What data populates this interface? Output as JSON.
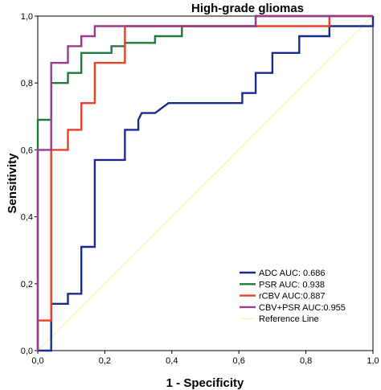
{
  "chart_data": {
    "type": "line",
    "title": "High-grade gliomas",
    "xlabel": "1 - Specificity",
    "ylabel": "Sensitivity",
    "xlim": [
      0,
      1
    ],
    "ylim": [
      0,
      1
    ],
    "x_tick_labels": [
      "0,0",
      "0,2",
      "0,4",
      "0,6",
      "0,8",
      "1,0"
    ],
    "y_tick_labels": [
      "0,0",
      "0,2",
      "0,4",
      "0,6",
      "0,8",
      "1,0"
    ],
    "x_ticks": [
      0,
      0.2,
      0.4,
      0.6,
      0.8,
      1.0
    ],
    "y_ticks": [
      0,
      0.2,
      0.4,
      0.6,
      0.8,
      1.0
    ],
    "legend_placement": "bottom-right",
    "series": [
      {
        "name": "ADC AUC: 0.686",
        "color": "#1a2b8f",
        "points": [
          [
            0,
            0
          ],
          [
            0.04,
            0
          ],
          [
            0.04,
            0.14
          ],
          [
            0.09,
            0.14
          ],
          [
            0.09,
            0.17
          ],
          [
            0.13,
            0.17
          ],
          [
            0.13,
            0.31
          ],
          [
            0.17,
            0.31
          ],
          [
            0.17,
            0.34
          ],
          [
            0.17,
            0.57
          ],
          [
            0.26,
            0.57
          ],
          [
            0.26,
            0.66
          ],
          [
            0.3,
            0.66
          ],
          [
            0.3,
            0.69
          ],
          [
            0.31,
            0.71
          ],
          [
            0.35,
            0.71
          ],
          [
            0.39,
            0.74
          ],
          [
            0.61,
            0.74
          ],
          [
            0.61,
            0.77
          ],
          [
            0.65,
            0.77
          ],
          [
            0.65,
            0.83
          ],
          [
            0.7,
            0.83
          ],
          [
            0.7,
            0.89
          ],
          [
            0.78,
            0.89
          ],
          [
            0.78,
            0.94
          ],
          [
            0.87,
            0.94
          ],
          [
            0.87,
            0.97
          ],
          [
            1.0,
            0.97
          ],
          [
            1.0,
            1.0
          ]
        ]
      },
      {
        "name": "PSR  AUC: 0.938",
        "color": "#1f7a3c",
        "points": [
          [
            0,
            0
          ],
          [
            0,
            0.69
          ],
          [
            0.04,
            0.69
          ],
          [
            0.04,
            0.8
          ],
          [
            0.09,
            0.8
          ],
          [
            0.09,
            0.83
          ],
          [
            0.13,
            0.83
          ],
          [
            0.13,
            0.89
          ],
          [
            0.22,
            0.89
          ],
          [
            0.22,
            0.91
          ],
          [
            0.26,
            0.91
          ],
          [
            0.26,
            0.92
          ],
          [
            0.35,
            0.92
          ],
          [
            0.35,
            0.94
          ],
          [
            0.43,
            0.94
          ],
          [
            0.43,
            0.97
          ],
          [
            0.65,
            0.97
          ],
          [
            0.65,
            1.0
          ],
          [
            1.0,
            1.0
          ]
        ]
      },
      {
        "name": "rCBV  AUC:0.887",
        "color": "#e8402a",
        "points": [
          [
            0,
            0
          ],
          [
            0,
            0.09
          ],
          [
            0.04,
            0.09
          ],
          [
            0.04,
            0.6
          ],
          [
            0.09,
            0.6
          ],
          [
            0.09,
            0.66
          ],
          [
            0.13,
            0.66
          ],
          [
            0.13,
            0.74
          ],
          [
            0.17,
            0.74
          ],
          [
            0.17,
            0.86
          ],
          [
            0.26,
            0.86
          ],
          [
            0.26,
            0.97
          ],
          [
            0.87,
            0.97
          ],
          [
            0.87,
            1.0
          ],
          [
            1.0,
            1.0
          ]
        ]
      },
      {
        "name": "CBV+PSR  AUC:0.955",
        "color": "#9b3a8c",
        "points": [
          [
            0,
            0
          ],
          [
            0,
            0.6
          ],
          [
            0.04,
            0.6
          ],
          [
            0.04,
            0.86
          ],
          [
            0.09,
            0.86
          ],
          [
            0.09,
            0.91
          ],
          [
            0.13,
            0.91
          ],
          [
            0.13,
            0.94
          ],
          [
            0.17,
            0.94
          ],
          [
            0.17,
            0.97
          ],
          [
            0.65,
            0.97
          ],
          [
            0.65,
            1.0
          ],
          [
            1.0,
            1.0
          ]
        ]
      },
      {
        "name": "Reference Line",
        "color": "#f2ef9a",
        "points": [
          [
            0,
            0
          ],
          [
            1,
            1
          ]
        ]
      }
    ]
  }
}
